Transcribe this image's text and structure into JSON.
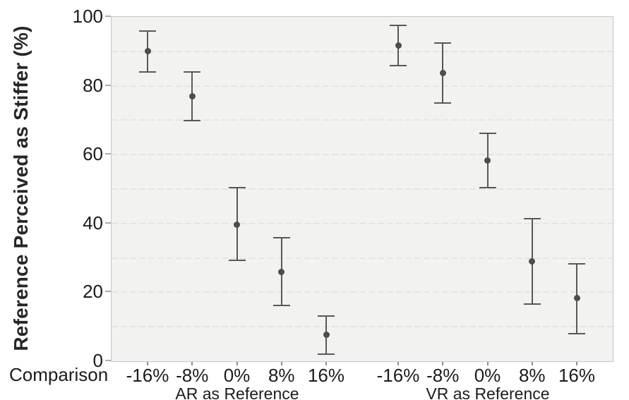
{
  "figure": {
    "background": "#ffffff",
    "panel_background": "#f2f3f1",
    "grid_color": "#e4e6e4",
    "panel_border_color": "#c3c6c3",
    "marker_color": "#4d4d4d",
    "errorbar_color": "#585858",
    "text_color": "#1c1c1c"
  },
  "chart_data": {
    "type": "scatter",
    "subtype": "point-estimates-with-error-bars",
    "title": "",
    "ylabel": "Reference Perceived as Stiffer (%)",
    "xlabel": "Comparison",
    "ylim": [
      0,
      100
    ],
    "y_ticks": [
      {
        "value": 0,
        "label": "0"
      },
      {
        "value": 20,
        "label": "20"
      },
      {
        "value": 40,
        "label": "40"
      },
      {
        "value": 60,
        "label": "60"
      },
      {
        "value": 80,
        "label": "80"
      },
      {
        "value": 100,
        "label": "100"
      }
    ],
    "y_gridline_values": [
      10,
      20,
      30,
      40,
      50,
      60,
      70,
      80,
      90
    ],
    "grid_style": "dashed",
    "legend_position": "none",
    "categories": [
      "-16%",
      "-8%",
      "0%",
      "8%",
      "16%"
    ],
    "groups": [
      {
        "label": "AR as Reference",
        "points": [
          {
            "category": "-16%",
            "mean": 90.0,
            "ci_low": 84.0,
            "ci_high": 96.0
          },
          {
            "category": "-8%",
            "mean": 76.9,
            "ci_low": 69.8,
            "ci_high": 84.1
          },
          {
            "category": "0%",
            "mean": 39.7,
            "ci_low": 29.3,
            "ci_high": 50.5
          },
          {
            "category": "8%",
            "mean": 25.9,
            "ci_low": 16.1,
            "ci_high": 35.9
          },
          {
            "category": "16%",
            "mean": 7.6,
            "ci_low": 2.0,
            "ci_high": 13.1
          }
        ]
      },
      {
        "label": "VR as Reference",
        "points": [
          {
            "category": "-16%",
            "mean": 91.7,
            "ci_low": 85.8,
            "ci_high": 97.5
          },
          {
            "category": "-8%",
            "mean": 83.7,
            "ci_low": 74.9,
            "ci_high": 92.5
          },
          {
            "category": "0%",
            "mean": 58.4,
            "ci_low": 50.5,
            "ci_high": 66.2
          },
          {
            "category": "8%",
            "mean": 28.9,
            "ci_low": 16.6,
            "ci_high": 41.3
          },
          {
            "category": "16%",
            "mean": 18.3,
            "ci_low": 8.0,
            "ci_high": 28.3
          }
        ]
      }
    ]
  }
}
